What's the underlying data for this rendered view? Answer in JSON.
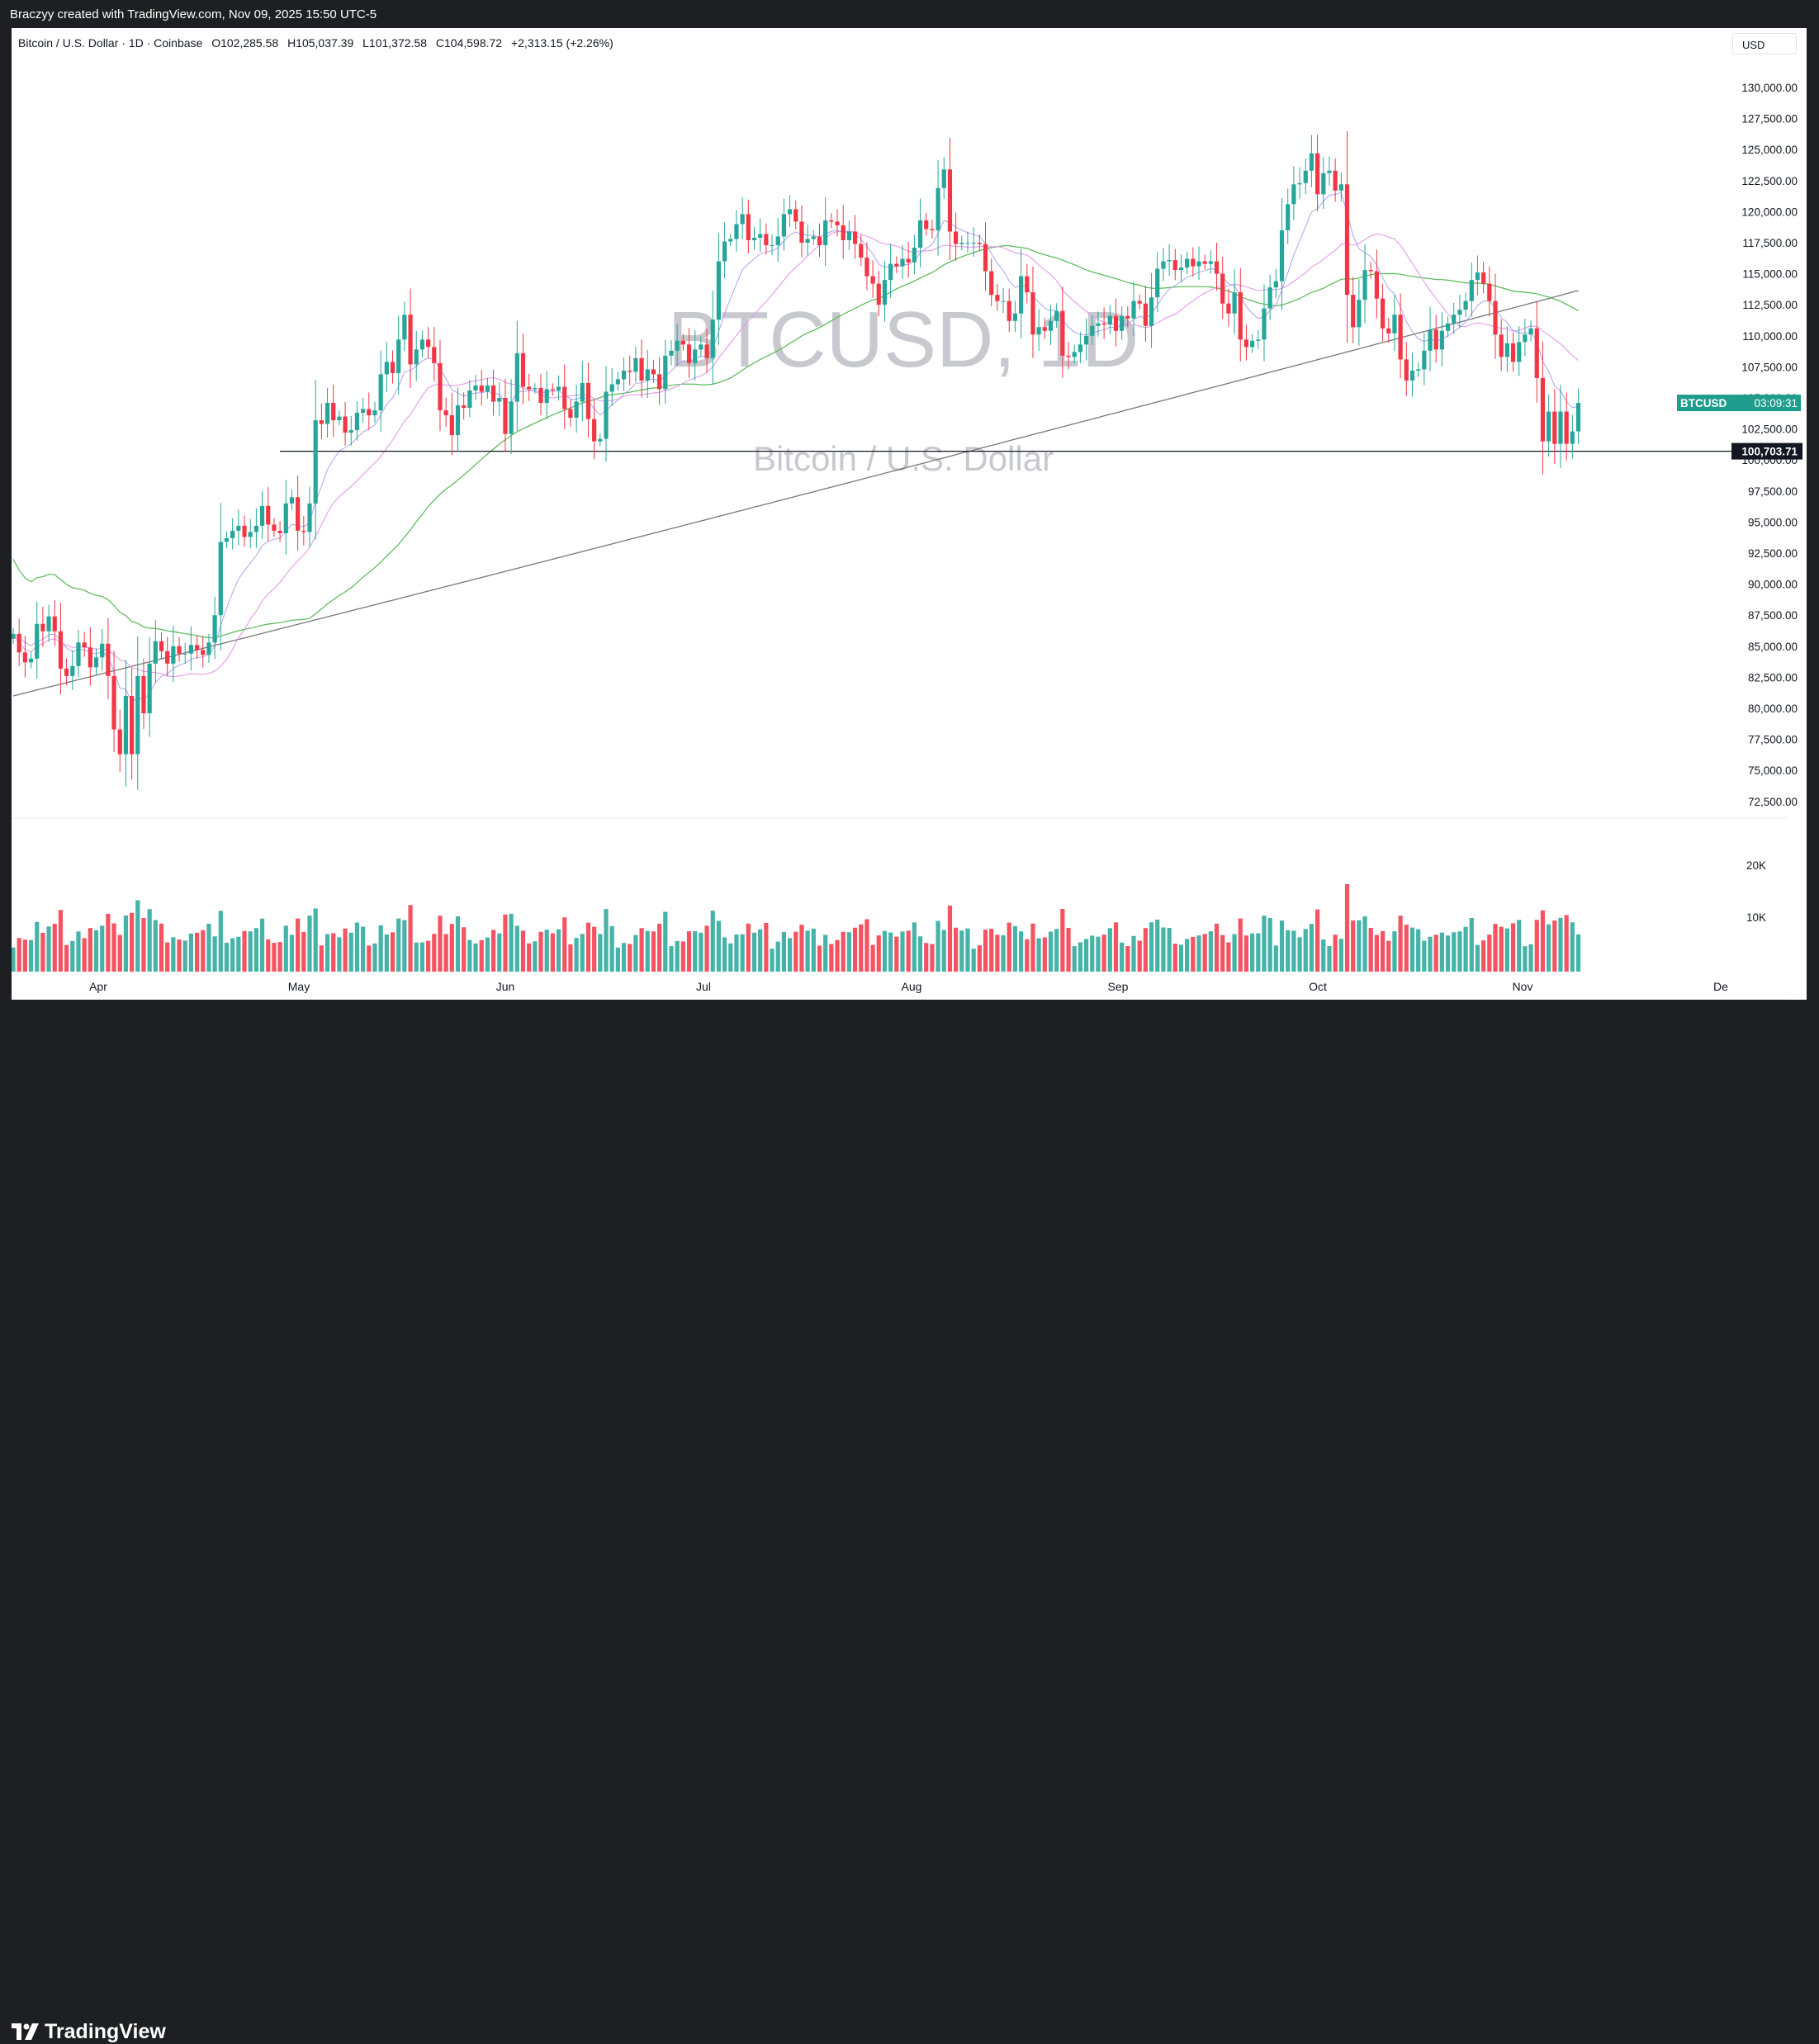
{
  "attribution": "Braczyy created with TradingView.com, Nov 09, 2025 15:50 UTC-5",
  "brand": {
    "name": "TradingView",
    "icon": "tradingview-logo-icon"
  },
  "header": {
    "symbol": "Bitcoin / U.S. Dollar · 1D · Coinbase",
    "open": "O102,285.58",
    "high": "H105,037.39",
    "low": "L101,372.58",
    "close": "C104,598.72",
    "change": "+2,313.15 (+2.26%)"
  },
  "currency": "USD",
  "watermark": {
    "title": "BTCUSD, 1D",
    "subtitle": "Bitcoin / U.S. Dollar"
  },
  "labels": {
    "symbol_tag": "BTCUSD",
    "countdown": "03:09:31",
    "hline_price": "100,703.71"
  },
  "colors": {
    "up": "#26a69a",
    "down": "#f23645",
    "ma_short": "#a8a4f0",
    "ma_mid": "#e39be8",
    "ma_green": "#55b855",
    "ma_long": "#777777",
    "tag_bg": "#1f9d8c"
  },
  "chart_data": [
    {
      "type": "candlestick",
      "title": "Bitcoin / U.S. Dollar · 1D · Coinbase",
      "price_ticks": [
        "130,000.00",
        "127,500.00",
        "125,000.00",
        "122,500.00",
        "120,000.00",
        "117,500.00",
        "115,000.00",
        "112,500.00",
        "110,000.00",
        "107,500.00",
        "105,000.00",
        "102,500.00",
        "100,000.00",
        "97,500.00",
        "95,000.00",
        "92,500.00",
        "90,000.00",
        "87,500.00",
        "85,000.00",
        "82,500.00",
        "80,000.00",
        "77,500.00",
        "75,000.00",
        "72,500.00"
      ],
      "ylim": [
        71500,
        131000
      ],
      "x_ticks": [
        "Apr",
        "May",
        "Jun",
        "Jul",
        "Aug",
        "Sep",
        "Oct",
        "Nov",
        "De"
      ],
      "horizontal_line": 100703.71,
      "last_close": 104598.72,
      "close": [
        86000,
        84500,
        83700,
        84000,
        86800,
        86200,
        87400,
        86200,
        83200,
        82600,
        83400,
        85300,
        84900,
        83300,
        84100,
        85200,
        82600,
        78300,
        76300,
        81000,
        76300,
        82600,
        79600,
        83600,
        85400,
        84600,
        83600,
        85000,
        84400,
        84400,
        85100,
        84700,
        84300,
        85300,
        87500,
        93400,
        93700,
        94300,
        94700,
        93800,
        94200,
        94700,
        96300,
        94800,
        94300,
        94100,
        96500,
        97000,
        94300,
        94200,
        96500,
        103200,
        102900,
        104600,
        103200,
        103500,
        102200,
        102400,
        103800,
        104100,
        103600,
        104000,
        106900,
        107900,
        107000,
        109700,
        111700,
        107700,
        108900,
        109700,
        109100,
        107800,
        104000,
        103600,
        102000,
        104400,
        104200,
        105600,
        106000,
        105500,
        106000,
        104700,
        105000,
        102100,
        104700,
        108600,
        105900,
        105700,
        105800,
        104600,
        105700,
        105600,
        105900,
        104100,
        103400,
        104700,
        106200,
        103300,
        101500,
        101700,
        105500,
        106100,
        106500,
        107200,
        107100,
        108200,
        106400,
        107300,
        106900,
        105700,
        108400,
        108800,
        109600,
        109300,
        107800,
        108900,
        109300,
        108200,
        111300,
        116000,
        117600,
        117800,
        119000,
        119800,
        117700,
        117900,
        118200,
        117300,
        117300,
        118000,
        119800,
        120200,
        119200,
        117500,
        117800,
        118000,
        117300,
        119300,
        119200,
        118900,
        117700,
        118400,
        117400,
        116300,
        114800,
        114200,
        112500,
        114500,
        115800,
        115600,
        116200,
        115900,
        117100,
        119300,
        118600,
        118500,
        121900,
        123400,
        118400,
        117400,
        117500,
        117500,
        117500,
        117400,
        115200,
        113300,
        112800,
        112800,
        111200,
        111800,
        114800,
        113500,
        110100,
        110700,
        110400,
        111200,
        112000,
        108400,
        108300,
        108700,
        109300,
        110000,
        110800,
        111000,
        110900,
        111600,
        110400,
        111600,
        111400,
        112800,
        112600,
        110800,
        113100,
        115400,
        116000,
        116100,
        115300,
        115500,
        116200,
        115600,
        116000,
        115800,
        116000,
        115000,
        112600,
        111800,
        113500,
        109700,
        109100,
        109600,
        109700,
        112200,
        113900,
        114400,
        118500,
        120600,
        122200,
        122300,
        123300,
        124700,
        121400,
        123100,
        123300,
        121700,
        122200,
        113300,
        110700,
        112900,
        115300,
        115200,
        113000,
        110600,
        110200,
        111700,
        108100,
        106400,
        107200,
        107300,
        108800,
        110500,
        108900,
        110400,
        111000,
        111700,
        112100,
        112800,
        114500,
        115100,
        114200,
        112800,
        110100,
        108300,
        109400,
        107900,
        109500,
        110100,
        110600,
        106600,
        101500,
        103900,
        101300,
        103900,
        101300,
        102300,
        104600
      ],
      "volume_scale_ticks": [
        "20K",
        "10K"
      ]
    }
  ]
}
